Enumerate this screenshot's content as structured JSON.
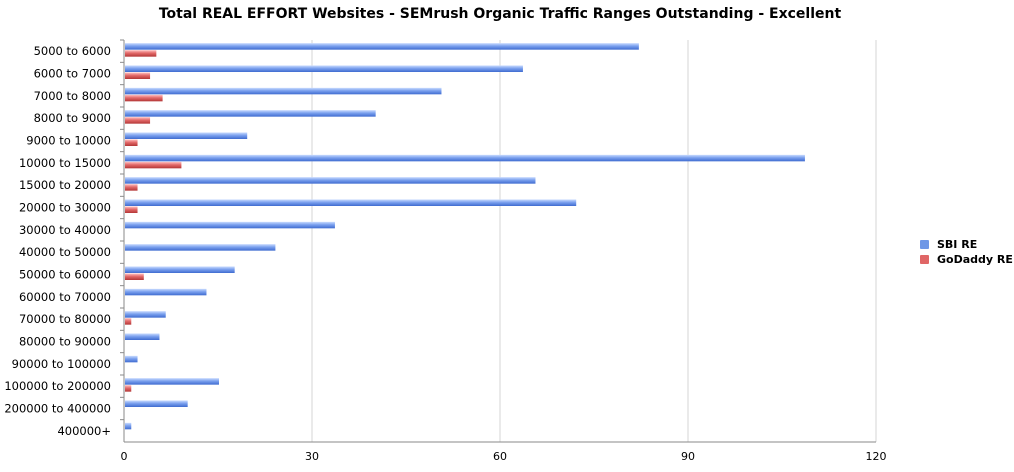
{
  "chart_data": {
    "type": "bar",
    "orientation": "horizontal",
    "title": "Total REAL EFFORT Websites - SEMrush Organic Traffic Ranges Outstanding - Excellent",
    "xlabel": "",
    "ylabel": "",
    "xlim": [
      0,
      120
    ],
    "xticks": [
      "0",
      "30",
      "60",
      "90",
      "120"
    ],
    "grid": true,
    "legend_position": "right",
    "categories": [
      "5000 to 6000",
      "6000 to 7000",
      "7000 to 8000",
      "8000 to 9000",
      "9000 to 10000",
      "10000 to 15000",
      "15000 to 20000",
      "20000 to 30000",
      "30000 to 40000",
      "40000 to 50000",
      "50000 to 60000",
      "60000 to 70000",
      "70000 to 80000",
      "80000 to 90000",
      "90000 to 100000",
      "100000 to 200000",
      "200000 to 400000",
      "400000+"
    ],
    "series": [
      {
        "name": "SBI RE",
        "color": "#6f97e6",
        "values": [
          82,
          63.5,
          50.5,
          40,
          19.5,
          108.5,
          65.5,
          72,
          33.5,
          24,
          17.5,
          13,
          6.5,
          5.5,
          2,
          15,
          10,
          1
        ]
      },
      {
        "name": "GoDaddy RE",
        "color": "#e06666",
        "values": [
          5,
          4,
          6,
          4,
          2,
          9,
          2,
          2,
          0,
          0,
          3,
          0,
          1,
          0,
          0,
          1,
          0,
          0
        ]
      }
    ]
  }
}
